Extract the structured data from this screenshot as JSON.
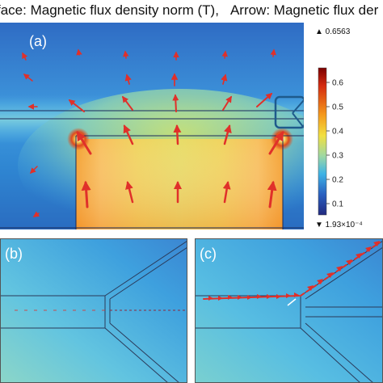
{
  "header": {
    "surface_label": "face: Magnetic flux density norm (T),",
    "arrow_label": "Arrow: Magnetic flux der"
  },
  "panels": {
    "a": "(a)",
    "b": "(b)",
    "c": "(c)"
  },
  "colorbar": {
    "max_label": "▲ 0.6563",
    "min_label": "▼ 1.93×10⁻⁴",
    "ticks": [
      "0.6",
      "0.5",
      "0.4",
      "0.3",
      "0.2",
      "0.1"
    ],
    "colors": [
      "#7a0000",
      "#d42a10",
      "#f59a1c",
      "#f2e040",
      "#9ed8a4",
      "#3fb4e6",
      "#2a60c0",
      "#222a80"
    ]
  },
  "arrow_color": "#e0302a",
  "magnet_color": "#f6b032"
}
